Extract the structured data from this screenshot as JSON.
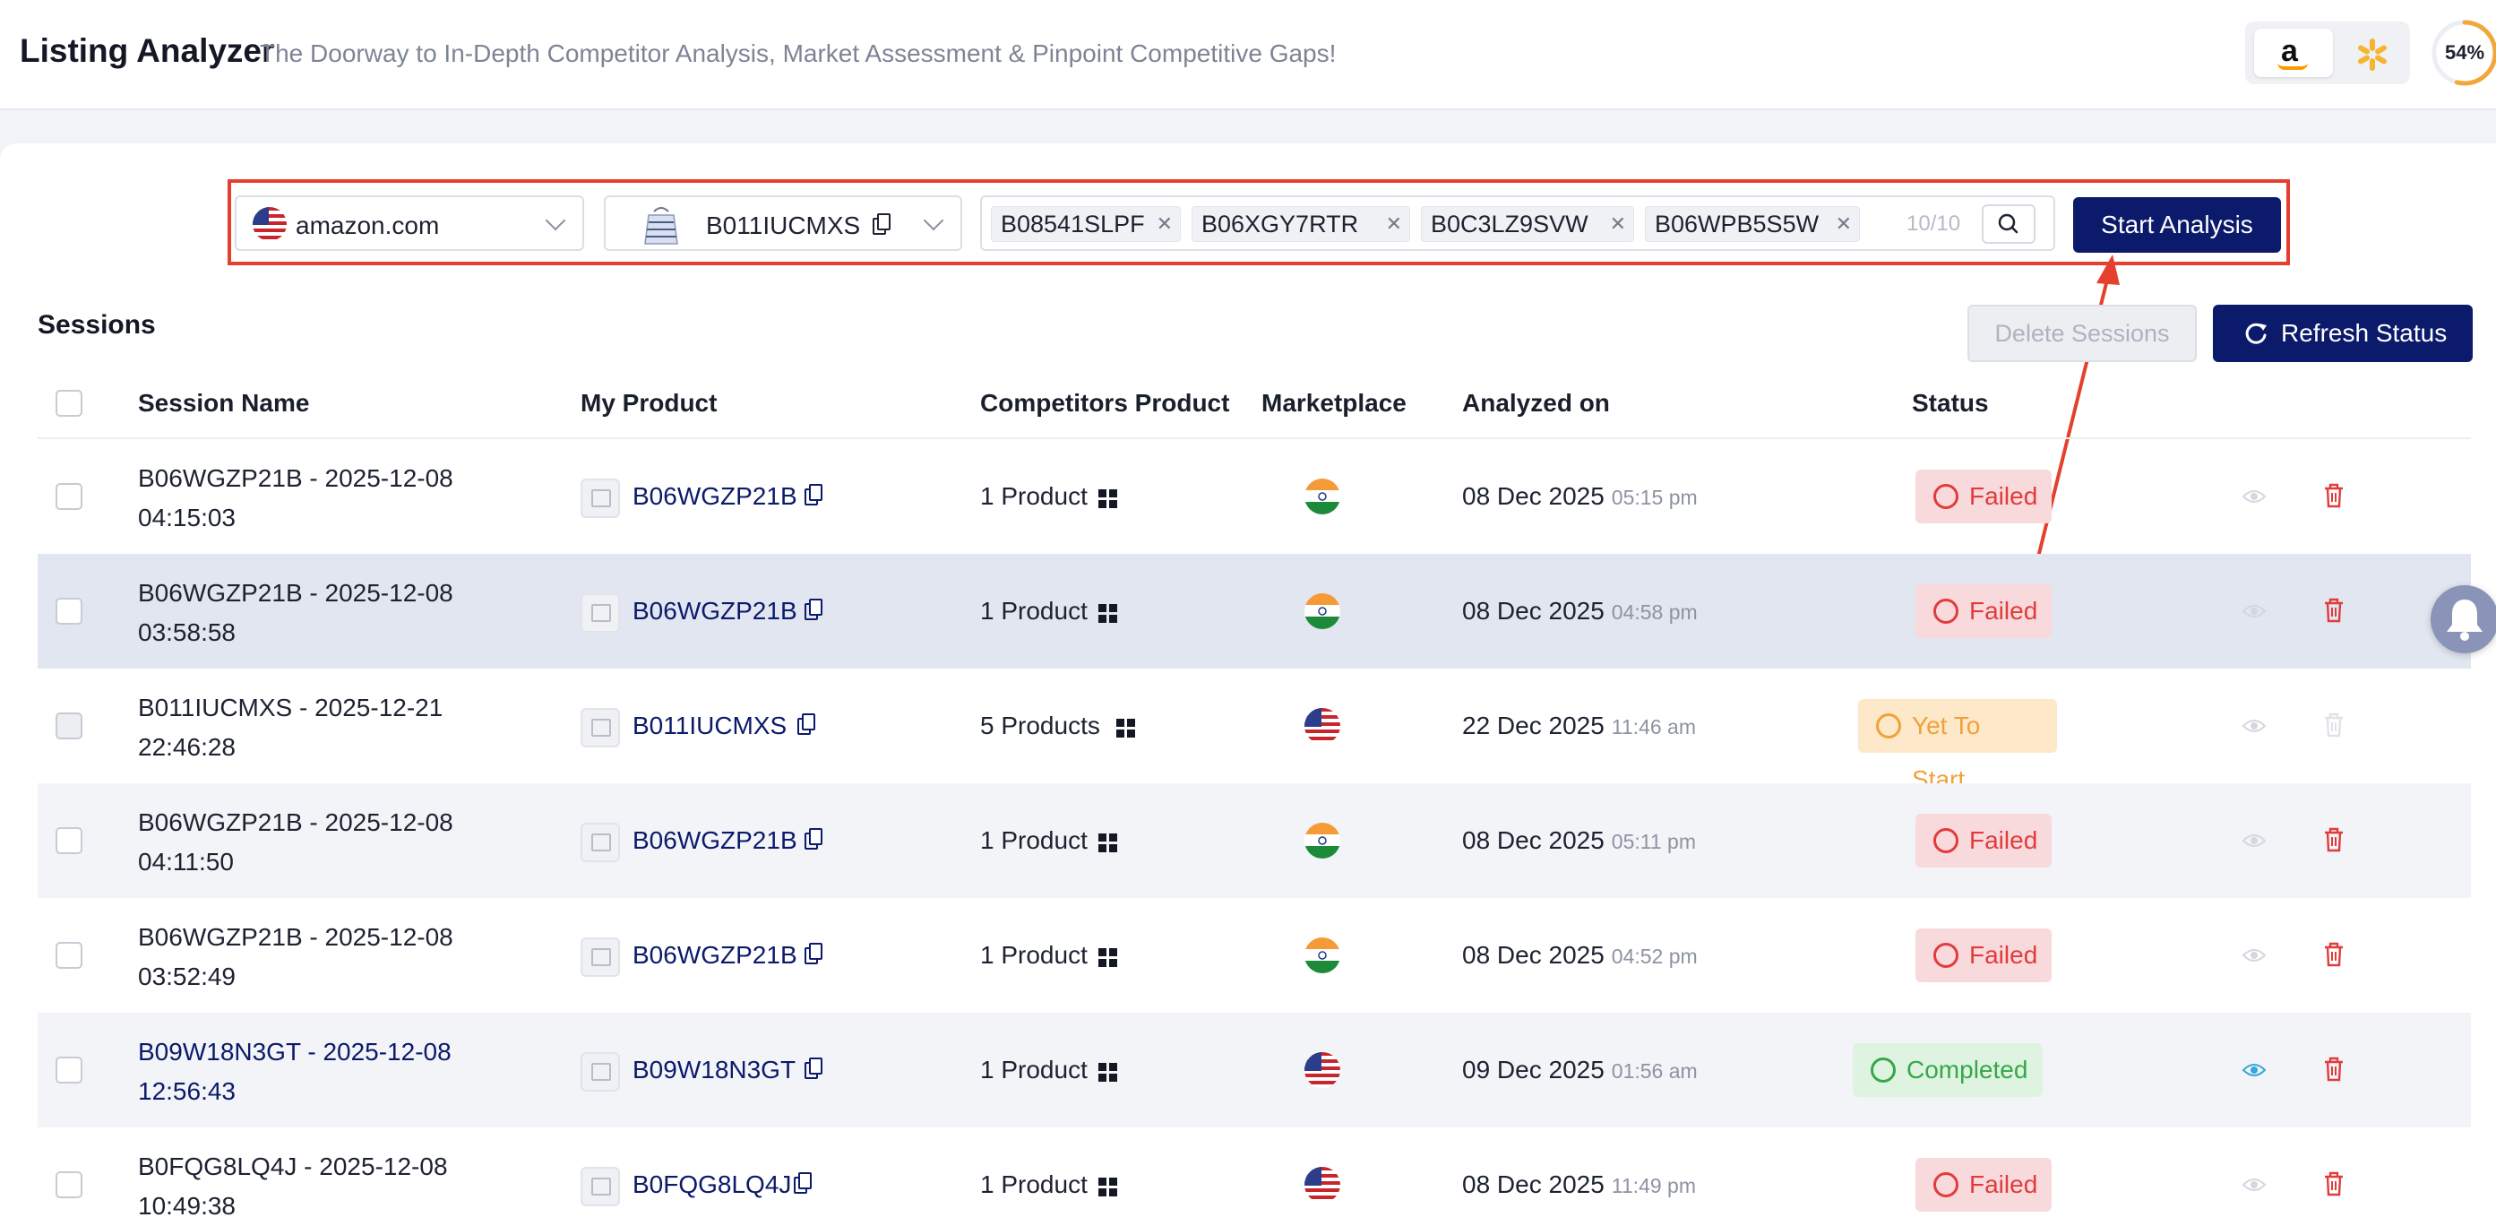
{
  "header": {
    "title": "Listing Analyzer",
    "subtitle": "The Doorway to In-Depth Competitor Analysis, Market Assessment & Pinpoint Competitive Gaps!",
    "marketplace_logos": [
      "amazon-logo",
      "walmart-logo"
    ],
    "usage_percent": "54%",
    "usage_value": 54
  },
  "search": {
    "marketplace": "amazon.com",
    "my_asin": "B011IUCMXS",
    "competitor_tags": [
      "B08541SLPF",
      "B06XGY7RTR",
      "B0C3LZ9SVW",
      "B06WPB5S5W"
    ],
    "tag_count": "10/10",
    "start_label": "Start Analysis"
  },
  "sessions": {
    "title": "Sessions",
    "delete_label": "Delete Sessions",
    "refresh_label": "Refresh Status",
    "columns": {
      "name": "Session Name",
      "my_product": "My Product",
      "competitors": "Competitors Product",
      "marketplace": "Marketplace",
      "analyzed": "Analyzed on",
      "status": "Status"
    },
    "rows": [
      {
        "name1": "B06WGZP21B - 2025-12-08",
        "name2": "04:15:03",
        "asin": "B06WGZP21B",
        "competitors": "1 Product",
        "flag": "india",
        "date": "08 Dec 2025",
        "time": "05:15 pm",
        "status": "Failed"
      },
      {
        "name1": "B06WGZP21B - 2025-12-08",
        "name2": "03:58:58",
        "asin": "B06WGZP21B",
        "competitors": "1 Product",
        "flag": "india",
        "date": "08 Dec 2025",
        "time": "04:58 pm",
        "status": "Failed"
      },
      {
        "name1": "B011IUCMXS - 2025-12-21",
        "name2": "22:46:28",
        "asin": "B011IUCMXS",
        "competitors": "5 Products",
        "flag": "usa",
        "date": "22 Dec 2025",
        "time": "11:46 am",
        "status": "Yet To Start"
      },
      {
        "name1": "B06WGZP21B - 2025-12-08",
        "name2": "04:11:50",
        "asin": "B06WGZP21B",
        "competitors": "1 Product",
        "flag": "india",
        "date": "08 Dec 2025",
        "time": "05:11 pm",
        "status": "Failed"
      },
      {
        "name1": "B06WGZP21B - 2025-12-08",
        "name2": "03:52:49",
        "asin": "B06WGZP21B",
        "competitors": "1 Product",
        "flag": "india",
        "date": "08 Dec 2025",
        "time": "04:52 pm",
        "status": "Failed"
      },
      {
        "name1": "B09W18N3GT - 2025-12-08",
        "name2": "12:56:43",
        "asin": "B09W18N3GT",
        "competitors": "1 Product",
        "flag": "usa",
        "date": "09 Dec 2025",
        "time": "01:56 am",
        "status": "Completed"
      },
      {
        "name1": "B0FQG8LQ4J - 2025-12-08",
        "name2": "10:49:38",
        "asin": "B0FQG8LQ4J",
        "competitors": "1 Product",
        "flag": "usa",
        "date": "08 Dec 2025",
        "time": "11:49 pm",
        "status": "Failed"
      }
    ]
  },
  "colors": {
    "primary": "#0b1a6a",
    "failed": "#e23b3b",
    "yet_to_start": "#f0a23a",
    "completed": "#35a84a",
    "annotation": "#e5402d"
  },
  "icons": {
    "copy": "copy-icon",
    "grid": "grid-icon",
    "eye": "eye-icon",
    "trash": "trash-icon",
    "bell": "bell-icon",
    "search": "search-icon",
    "refresh": "refresh-icon"
  }
}
